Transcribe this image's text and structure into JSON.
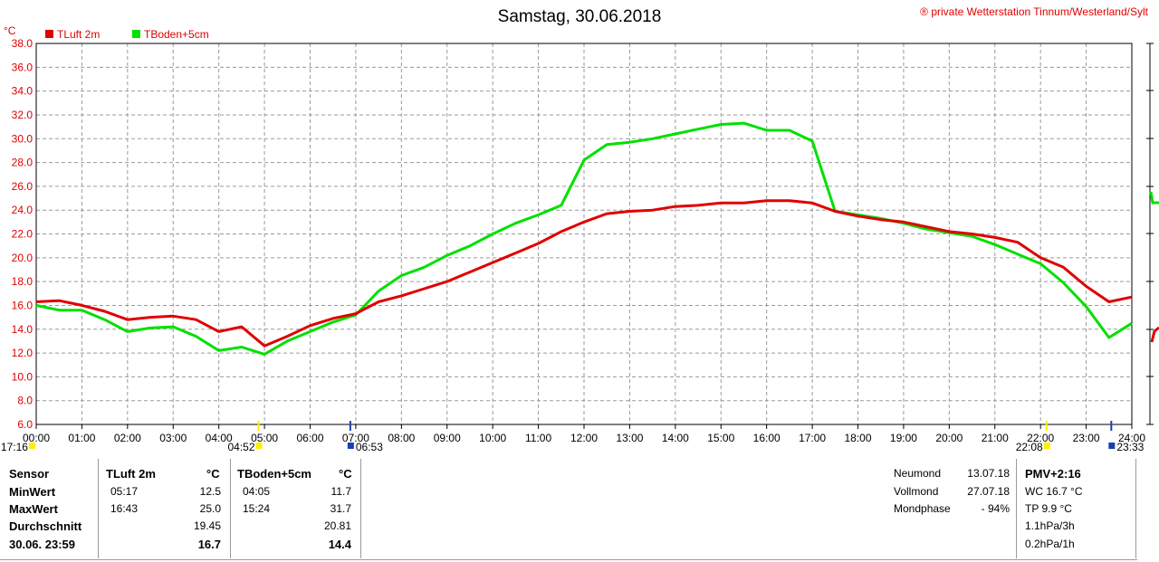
{
  "chart_data": {
    "type": "line",
    "title": "Samstag, 30.06.2018",
    "copyright": "® private Wetterstation Tinnum/Westerland/Sylt",
    "yunit": "°C",
    "ylim": [
      6,
      38
    ],
    "yticks": [
      "6.0",
      "8.0",
      "10.0",
      "12.0",
      "14.0",
      "16.0",
      "18.0",
      "20.0",
      "22.0",
      "24.0",
      "26.0",
      "28.0",
      "30.0",
      "32.0",
      "34.0",
      "36.0",
      "38.0"
    ],
    "xticks": [
      "00:00",
      "01:00",
      "02:00",
      "03:00",
      "04:00",
      "05:00",
      "06:00",
      "07:00",
      "08:00",
      "09:00",
      "10:00",
      "11:00",
      "12:00",
      "13:00",
      "14:00",
      "15:00",
      "16:00",
      "17:00",
      "18:00",
      "19:00",
      "20:00",
      "21:00",
      "22:00",
      "23:00",
      "24:00"
    ],
    "grid": true,
    "series": [
      {
        "name": "TLuft 2m",
        "color": "#e00000",
        "x": [
          0,
          0.5,
          1,
          1.5,
          2,
          2.5,
          3,
          3.5,
          4,
          4.5,
          5,
          5.5,
          6,
          6.5,
          7,
          7.5,
          8,
          8.5,
          9,
          9.5,
          10,
          10.5,
          11,
          11.5,
          12,
          12.5,
          13,
          13.5,
          14,
          14.5,
          15,
          15.5,
          16,
          16.5,
          17,
          17.5,
          18,
          18.5,
          19,
          19.5,
          20,
          20.5,
          21,
          21.5,
          22,
          22.5,
          23,
          23.5,
          24
        ],
        "values": [
          16.3,
          16.4,
          16.0,
          15.5,
          14.8,
          15.0,
          15.1,
          14.8,
          13.8,
          14.2,
          12.6,
          13.4,
          14.3,
          14.9,
          15.3,
          16.3,
          16.8,
          17.4,
          18.0,
          18.8,
          19.6,
          20.4,
          21.2,
          22.2,
          23.0,
          23.7,
          23.9,
          24.0,
          24.3,
          24.4,
          24.6,
          24.6,
          24.8,
          24.8,
          24.6,
          23.9,
          23.5,
          23.2,
          23.0,
          22.6,
          22.2,
          22.0,
          21.7,
          21.3,
          20.0,
          19.2,
          17.6,
          16.3,
          16.7
        ]
      },
      {
        "name": "TBoden+5cm",
        "color": "#00e000",
        "x": [
          0,
          0.5,
          1,
          1.5,
          2,
          2.5,
          3,
          3.5,
          4,
          4.5,
          5,
          5.5,
          6,
          6.5,
          7,
          7.5,
          8,
          8.5,
          9,
          9.5,
          10,
          10.5,
          11,
          11.5,
          12,
          12.5,
          13,
          13.5,
          14,
          14.5,
          15,
          15.5,
          16,
          16.5,
          17,
          17.5,
          18,
          18.5,
          19,
          19.5,
          20,
          20.5,
          21,
          21.5,
          22,
          22.5,
          23,
          23.5,
          24
        ],
        "values": [
          16.0,
          15.6,
          15.6,
          14.8,
          13.8,
          14.1,
          14.2,
          13.4,
          12.2,
          12.5,
          11.9,
          13.0,
          13.8,
          14.6,
          15.2,
          17.2,
          18.5,
          19.2,
          20.2,
          21.0,
          22.0,
          22.9,
          23.6,
          24.4,
          28.2,
          29.5,
          29.7,
          30.0,
          30.4,
          30.8,
          31.2,
          31.3,
          30.7,
          30.7,
          29.8,
          23.9,
          23.6,
          23.3,
          22.9,
          22.4,
          22.1,
          21.8,
          21.1,
          20.3,
          19.5,
          17.9,
          15.9,
          13.3,
          14.5
        ]
      }
    ],
    "markers": [
      {
        "time": "17:16",
        "hour": -0.1,
        "label_side": "left",
        "color": "#ffee00"
      },
      {
        "time": "04:52",
        "hour": 4.87,
        "label_side": "left",
        "color": "#ffee00"
      },
      {
        "time": "06:53",
        "hour": 6.88,
        "label_side": "right",
        "color": "#1a3fb0"
      },
      {
        "time": "22:08",
        "hour": 22.13,
        "label_side": "left",
        "color": "#ffee00"
      },
      {
        "time": "23:33",
        "hour": 23.55,
        "label_side": "right",
        "color": "#1a3fb0"
      }
    ]
  },
  "stats": {
    "headers": {
      "sensor": "Sensor",
      "s1": "TLuft 2m",
      "s1_unit": "°C",
      "s2": "TBoden+5cm",
      "s2_unit": "°C"
    },
    "rows": [
      {
        "label": "MinWert",
        "s1_time": "05:17",
        "s1_val": "12.5",
        "s2_time": "04:05",
        "s2_val": "11.7"
      },
      {
        "label": "MaxWert",
        "s1_time": "16:43",
        "s1_val": "25.0",
        "s2_time": "15:24",
        "s2_val": "31.7"
      },
      {
        "label": "Durchschnitt",
        "s1_time": "",
        "s1_val": "19.45",
        "s2_time": "",
        "s2_val": "20.81"
      },
      {
        "label": "30.06. 23:59",
        "s1_time": "",
        "s1_val": "16.7",
        "s2_time": "",
        "s2_val": "14.4"
      }
    ]
  },
  "moon": [
    {
      "label": "Neumond",
      "value": "13.07.18"
    },
    {
      "label": "Vollmond",
      "value": "27.07.18"
    },
    {
      "label": "Mondphase",
      "value": "- 94%"
    }
  ],
  "pmv": {
    "title": "PMV+2:16",
    "lines": [
      "WC 16.7 °C",
      "TP 9.9 °C",
      "1.1hPa/3h",
      "0.2hPa/1h"
    ]
  }
}
